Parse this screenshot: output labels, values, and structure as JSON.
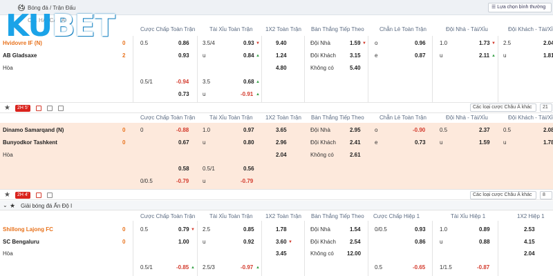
{
  "topbar": {
    "breadcrumb": "Bóng đá / Trận Đấu",
    "view_select": "Lựa chọn bình thường"
  },
  "logo": {
    "part1": "KU",
    "part2": "BET"
  },
  "league1_name": "CH. HAI CA LAN",
  "headers1": [
    "Cược Chấp Toàn Trận",
    "Tài Xỉu Toàn Trận",
    "1X2 Toàn Trận",
    "Bàn Thắng Tiếp Theo",
    "Chẵn Lẻ Toàn Trận",
    "Đội Nhà - Tài/Xỉu",
    "Đội Khách - Tài/Xỉu"
  ],
  "headers3": [
    "Cược Chấp Toàn Trận",
    "Tài Xỉu Toàn Trận",
    "1X2 Toàn Trận",
    "Bàn Thắng Tiếp Theo",
    "Cược Chấp Hiệp 1",
    "Tài Xỉu Hiệp 1",
    "1X2 Hiệp 1"
  ],
  "league3": {
    "name": "Giải bóng đá Ấn Độ I"
  },
  "colors": {
    "accent": "#e8721c",
    "live": "#d9231d",
    "brand": "#1ba3e8"
  },
  "match1": {
    "home": "Hvidovre IF (N)",
    "away": "AB Gladsaxe",
    "draw": "Hòa",
    "home_score": "0",
    "away_score": "2",
    "hc": [
      "0.5",
      "0.86",
      "",
      "0.93",
      "0.5/1",
      "-0.94",
      "",
      "0.73"
    ],
    "ou": [
      "3.5/4",
      "0.93",
      "u",
      "0.84",
      "3.5",
      "0.68",
      "u",
      "-0.91"
    ],
    "x12": [
      "9.40",
      "1.24",
      "4.80"
    ],
    "next": [
      "Đội Nhà",
      "1.59",
      "Đội Khách",
      "3.15",
      "Không có",
      "5.40"
    ],
    "oe": [
      "o",
      "0.96",
      "e",
      "0.87"
    ],
    "hou": [
      "1.0",
      "1.73",
      "u",
      "2.11"
    ],
    "aou": [
      "2.5",
      "2.04",
      "u",
      "1.81"
    ],
    "timer": "2H 5'"
  },
  "match2": {
    "home": "Dinamo Samarqand (N)",
    "away": "Bunyodkor Tashkent",
    "draw": "Hòa",
    "home_score": "0",
    "away_score": "0",
    "hc": [
      "0",
      "-0.88",
      "",
      "0.67",
      "",
      "0.58",
      "0/0.5",
      "-0.79"
    ],
    "ou": [
      "1.0",
      "0.97",
      "u",
      "0.80",
      "0.5/1",
      "0.56",
      "u",
      "-0.79"
    ],
    "x12": [
      "3.65",
      "2.96",
      "2.04"
    ],
    "next": [
      "Đội Nhà",
      "2.95",
      "Đội Khách",
      "2.41",
      "Không có",
      "2.61"
    ],
    "oe": [
      "o",
      "-0.90",
      "e",
      "0.73"
    ],
    "hou": [
      "0.5",
      "2.37",
      "u",
      "1.59"
    ],
    "aou": [
      "0.5",
      "2.08",
      "u",
      "1.78"
    ],
    "timer": "2H 4'",
    "filter_type": "Các loại cược Châu Á khác",
    "filter_count": "21"
  },
  "match3": {
    "home": "Shillong Lajong FC",
    "away": "SC Bengaluru",
    "draw": "Hòa",
    "home_score": "0",
    "away_score": "0",
    "hc": [
      "0.5",
      "0.79",
      "",
      "1.00",
      "0.5/1",
      "-0.85"
    ],
    "ou": [
      "2.5",
      "0.85",
      "u",
      "0.92",
      "2.5/3",
      "-0.97"
    ],
    "x12": [
      "1.78",
      "3.60",
      "3.45"
    ],
    "next": [
      "Đội Nhà",
      "1.54",
      "Đội Khách",
      "2.54",
      "Không có",
      "12.00"
    ],
    "h1hc": [
      "0/0.5",
      "0.93",
      "",
      "0.86",
      "0.5",
      "-0.65"
    ],
    "h1ou": [
      "1.0",
      "0.89",
      "u",
      "0.88",
      "1/1.5",
      "-0.87"
    ],
    "h1x12": [
      "2.53",
      "4.15",
      "2.04"
    ],
    "filter_type": "Các loại cược Châu Á khác",
    "filter_count": "8"
  }
}
